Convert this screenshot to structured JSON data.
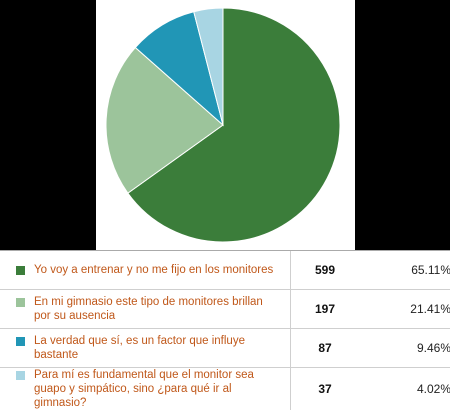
{
  "chart_data": {
    "type": "pie",
    "title": "",
    "slices": [
      {
        "label": "Yo voy a entrenar y no me fijo en los monitores",
        "count": "599",
        "percent": "65.11%",
        "value": 65.11,
        "color": "#3b7d3a"
      },
      {
        "label": "En mi gimnasio este tipo de monitores brillan por su ausencia",
        "count": "197",
        "percent": "21.41%",
        "value": 21.41,
        "color": "#9cc49b"
      },
      {
        "label": "La verdad que sí, es un factor que influye bastante",
        "count": "87",
        "percent": "9.46%",
        "value": 9.46,
        "color": "#2196b6"
      },
      {
        "label": "Para mí es fundamental que el monitor sea guapo y simpático, sino ¿para qué ir al gimnasio?",
        "count": "37",
        "percent": "4.02%",
        "value": 4.02,
        "color": "#a8d5e3"
      }
    ]
  }
}
